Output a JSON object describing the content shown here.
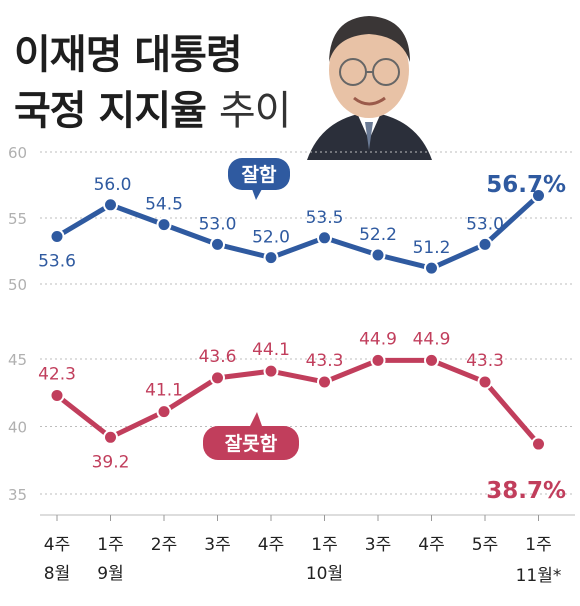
{
  "title_line1": "이재명 대통령",
  "title_line2": "국정 지지율",
  "title_suffix": "추이",
  "chart_data": {
    "type": "line",
    "x": [
      "4주 8월",
      "1주 9월",
      "2주",
      "3주",
      "4주",
      "1주 10월",
      "3주",
      "4주",
      "5주",
      "1주 11월*"
    ],
    "x_week": [
      "4주",
      "1주",
      "2주",
      "3주",
      "4주",
      "1주",
      "3주",
      "4주",
      "5주",
      "1주"
    ],
    "month_labels": [
      "8월",
      "9월",
      "10월",
      "11월*"
    ],
    "series": [
      {
        "name": "잘함",
        "values": [
          53.6,
          56.0,
          54.5,
          53.0,
          52.0,
          53.5,
          52.2,
          51.2,
          53.0,
          56.7
        ],
        "color": "#2f5aa0",
        "last_label": "56.7%"
      },
      {
        "name": "잘못함",
        "values": [
          42.3,
          39.2,
          41.1,
          43.6,
          44.1,
          43.3,
          44.9,
          44.9,
          43.3,
          38.7
        ],
        "color": "#c13e5c",
        "last_label": "38.7%"
      }
    ],
    "yticks_top": [
      50,
      55,
      60
    ],
    "yticks_bottom": [
      35,
      40,
      45
    ],
    "ylim_top": [
      50,
      60
    ],
    "ylim_bottom": [
      35,
      45
    ]
  }
}
